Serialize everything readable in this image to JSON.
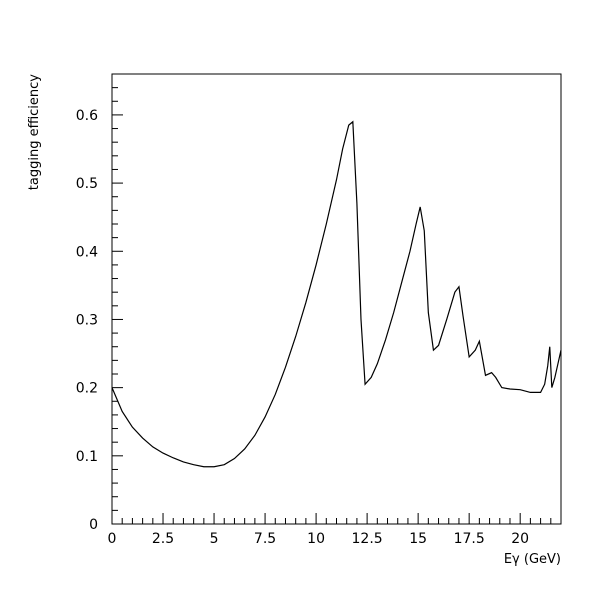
{
  "chart_data": {
    "type": "line",
    "title": "",
    "xlabel": "Eγ (GeV)",
    "ylabel": "tagging efficiency",
    "xlim": [
      0,
      22
    ],
    "ylim": [
      0,
      0.66
    ],
    "grid": false,
    "x_major_ticks": [
      0,
      2.5,
      5,
      7.5,
      10,
      12.5,
      15,
      17.5,
      20
    ],
    "x_tick_labels": [
      "0",
      "2.5",
      "5",
      "7.5",
      "10",
      "12.5",
      "15",
      "17.5",
      "20"
    ],
    "y_major_ticks": [
      0,
      0.1,
      0.2,
      0.3,
      0.4,
      0.5,
      0.6
    ],
    "y_tick_labels": [
      "0",
      "0.1",
      "0.2",
      "0.3",
      "0.4",
      "0.5",
      "0.6"
    ],
    "series": [
      {
        "x": [
          0,
          0.5,
          1.0,
          1.5,
          2.0,
          2.5,
          3.0,
          3.5,
          4.0,
          4.5,
          5.0,
          5.5,
          6.0,
          6.5,
          7.0,
          7.5,
          8.0,
          8.5,
          9.0,
          9.5,
          10.0,
          10.5,
          11.0,
          11.3,
          11.6,
          11.8,
          12.0,
          12.2,
          12.4,
          12.7,
          13.0,
          13.4,
          13.8,
          14.2,
          14.6,
          14.9,
          15.1,
          15.3,
          15.5,
          15.75,
          16.0,
          16.4,
          16.8,
          17.0,
          17.2,
          17.5,
          17.8,
          18.0,
          18.3,
          18.6,
          18.8,
          19.1,
          19.5,
          20.0,
          20.5,
          21.0,
          21.2,
          21.35,
          21.45,
          21.55,
          21.7,
          21.85,
          22.0
        ],
        "y": [
          0.2,
          0.165,
          0.142,
          0.126,
          0.113,
          0.104,
          0.097,
          0.091,
          0.087,
          0.084,
          0.084,
          0.087,
          0.096,
          0.11,
          0.13,
          0.157,
          0.19,
          0.23,
          0.275,
          0.325,
          0.38,
          0.44,
          0.505,
          0.55,
          0.585,
          0.59,
          0.47,
          0.3,
          0.205,
          0.215,
          0.235,
          0.27,
          0.31,
          0.355,
          0.4,
          0.44,
          0.465,
          0.43,
          0.31,
          0.255,
          0.262,
          0.3,
          0.34,
          0.348,
          0.305,
          0.245,
          0.255,
          0.268,
          0.218,
          0.222,
          0.215,
          0.2,
          0.198,
          0.197,
          0.193,
          0.193,
          0.205,
          0.232,
          0.26,
          0.2,
          0.215,
          0.235,
          0.255
        ]
      }
    ]
  }
}
